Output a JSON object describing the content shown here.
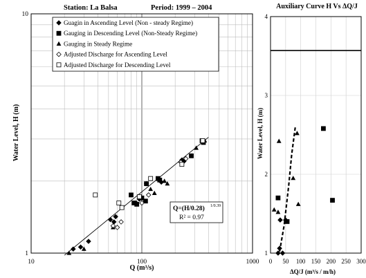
{
  "chart_data": [
    {
      "type": "scatter",
      "title": "Station: La Balsa",
      "subtitle": "Period: 1999 – 2004",
      "xlabel": "Q (m³/s)",
      "ylabel": "Water Level, H (m)",
      "x_scale": "log",
      "y_scale": "log",
      "xlim": [
        10,
        1000
      ],
      "ylim": [
        1,
        10
      ],
      "x_tick_labels": [
        "10",
        "100",
        "1000"
      ],
      "y_tick_labels": [
        "1",
        "10"
      ],
      "grid": true,
      "legend_position": "top-left",
      "series": [
        {
          "name": "Guagin in Ascending Level (Non - steady Regime)",
          "marker": "diamond-filled",
          "points": [
            [
              24,
              1.04
            ],
            [
              28,
              1.06
            ],
            [
              33,
              1.12
            ],
            [
              52,
              1.38
            ],
            [
              56,
              1.35
            ],
            [
              58,
              1.42
            ],
            [
              88,
              1.62
            ],
            [
              95,
              1.68
            ],
            [
              110,
              1.95
            ],
            [
              150,
              1.98
            ],
            [
              230,
              2.45
            ],
            [
              240,
              2.42
            ]
          ]
        },
        {
          "name": "Gauging in Descending Level (Non-Steady Regime)",
          "marker": "square-filled",
          "points": [
            [
              80,
              1.75
            ],
            [
              85,
              1.62
            ],
            [
              90,
              1.6
            ],
            [
              100,
              1.7
            ],
            [
              108,
              1.65
            ],
            [
              110,
              1.95
            ],
            [
              140,
              2.05
            ],
            [
              145,
              2.02
            ],
            [
              280,
              2.55
            ],
            [
              350,
              2.95
            ],
            [
              360,
              2.9
            ]
          ]
        },
        {
          "name": "Gauging in Steady Regime",
          "marker": "triangle-filled",
          "points": [
            [
              22,
              1.0
            ],
            [
              30,
              1.04
            ],
            [
              55,
              1.28
            ],
            [
              90,
              1.62
            ],
            [
              120,
              1.85
            ],
            [
              130,
              1.78
            ],
            [
              160,
              2.0
            ],
            [
              170,
              1.95
            ],
            [
              310,
              2.75
            ],
            [
              370,
              2.95
            ]
          ]
        },
        {
          "name": "Adjusted Discharge for Ascending Level",
          "marker": "diamond-open",
          "points": [
            [
              55,
              1.3
            ],
            [
              60,
              1.28
            ],
            [
              65,
              1.35
            ],
            [
              100,
              1.62
            ],
            [
              115,
              1.75
            ],
            [
              225,
              2.4
            ],
            [
              250,
              2.48
            ]
          ]
        },
        {
          "name": "Adjusted Discharge for Descending Level",
          "marker": "square-open",
          "points": [
            [
              38,
              1.75
            ],
            [
              62,
              1.62
            ],
            [
              66,
              1.55
            ],
            [
              95,
              1.72
            ],
            [
              120,
              2.05
            ],
            [
              230,
              2.35
            ],
            [
              355,
              2.95
            ]
          ]
        }
      ],
      "fit_line": {
        "points": [
          [
            20,
            0.98
          ],
          [
            400,
            3.05
          ]
        ]
      },
      "annotation": {
        "equation": "Q=(H/0.28)",
        "exponent": "1/0.39",
        "r2": "R² = 0.97"
      }
    },
    {
      "type": "scatter",
      "title": "Auxiliary Curve H Vs ΔQ/J",
      "xlabel": "ΔQ/J  (m³/s / m/h)",
      "ylabel": "Water Level, H (m)",
      "xlim": [
        0,
        300
      ],
      "ylim": [
        1,
        4
      ],
      "x_ticks": [
        0,
        50,
        100,
        150,
        200,
        250,
        300
      ],
      "y_ticks": [
        1,
        2,
        3,
        4
      ],
      "x_tick_labels": [
        "0",
        "50",
        "100",
        "150",
        "200",
        "250",
        "300"
      ],
      "y_tick_labels": [
        "1",
        "2",
        "3",
        "4"
      ],
      "grid": true,
      "horizontal_line": 3.57,
      "series": [
        {
          "marker": "triangle-filled",
          "points": [
            [
              12,
              1.55
            ],
            [
              28,
              2.42
            ],
            [
              75,
              1.95
            ],
            [
              88,
              2.52
            ],
            [
              92,
              1.62
            ],
            [
              25,
              1.52
            ]
          ]
        },
        {
          "marker": "diamond-filled",
          "points": [
            [
              25,
              1.0
            ],
            [
              30,
              1.06
            ],
            [
              32,
              1.42
            ],
            [
              40,
              1.0
            ],
            [
              50,
              1.42
            ]
          ]
        },
        {
          "marker": "square-filled",
          "points": [
            [
              25,
              1.7
            ],
            [
              175,
              2.58
            ],
            [
              205,
              1.67
            ],
            [
              55,
              1.4
            ]
          ]
        }
      ],
      "trend_line": {
        "style": "dashed",
        "points": [
          [
            30,
            1.02
          ],
          [
            45,
            1.35
          ],
          [
            60,
            1.85
          ],
          [
            70,
            2.25
          ],
          [
            82,
            2.6
          ]
        ]
      }
    }
  ]
}
